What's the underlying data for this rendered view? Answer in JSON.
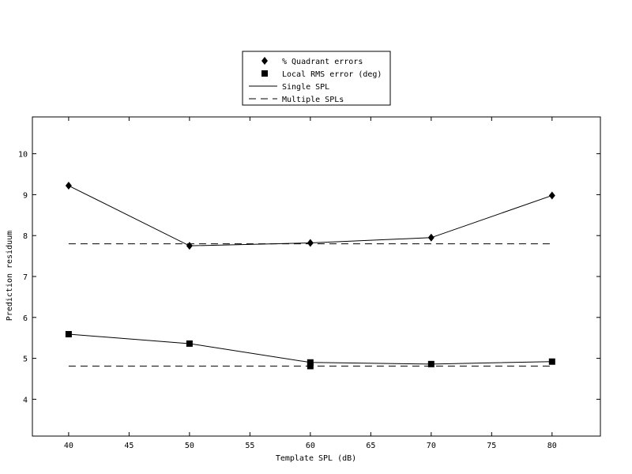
{
  "chart_data": {
    "type": "line",
    "xlabel": "Template SPL (dB)",
    "ylabel": "Prediction residuum",
    "xlim": [
      37,
      84
    ],
    "ylim": [
      3.1,
      10.9
    ],
    "xticks": [
      40,
      45,
      50,
      55,
      60,
      65,
      70,
      75,
      80
    ],
    "yticks": [
      4,
      5,
      6,
      7,
      8,
      9,
      10
    ],
    "grid": false,
    "legend_position": "top-center, outside plot area",
    "legend": [
      {
        "label": "% Quadrant errors",
        "style": "diamond-marker"
      },
      {
        "label": "Local RMS error (deg)",
        "style": "square-marker"
      },
      {
        "label": "Single SPL",
        "style": "solid-line"
      },
      {
        "label": "Multiple SPLs",
        "style": "dashed-line"
      }
    ],
    "series": [
      {
        "name": "% Quadrant errors",
        "line": "Single SPL",
        "marker": "diamond",
        "x": [
          40,
          50,
          60,
          70,
          80
        ],
        "y": [
          9.22,
          7.75,
          7.82,
          7.95,
          8.98
        ]
      },
      {
        "name": "% Quadrant errors",
        "line": "Multiple SPLs",
        "marker": "none",
        "x": [
          40,
          80
        ],
        "y": [
          7.8,
          7.8
        ]
      },
      {
        "name": "Local RMS error (deg)",
        "line": "Single SPL",
        "marker": "square",
        "x": [
          40,
          50,
          60,
          70,
          80
        ],
        "y": [
          5.59,
          5.36,
          4.9,
          4.86,
          4.92
        ]
      },
      {
        "name": "Local RMS error (deg)",
        "line": "Multiple SPLs",
        "marker": "square",
        "x": [
          40,
          80,
          60
        ],
        "y": [
          4.81,
          4.81,
          4.81
        ],
        "marker_only_at": [
          60
        ]
      }
    ],
    "colors": {
      "axes": "#000000",
      "background": "#ffffff"
    }
  }
}
